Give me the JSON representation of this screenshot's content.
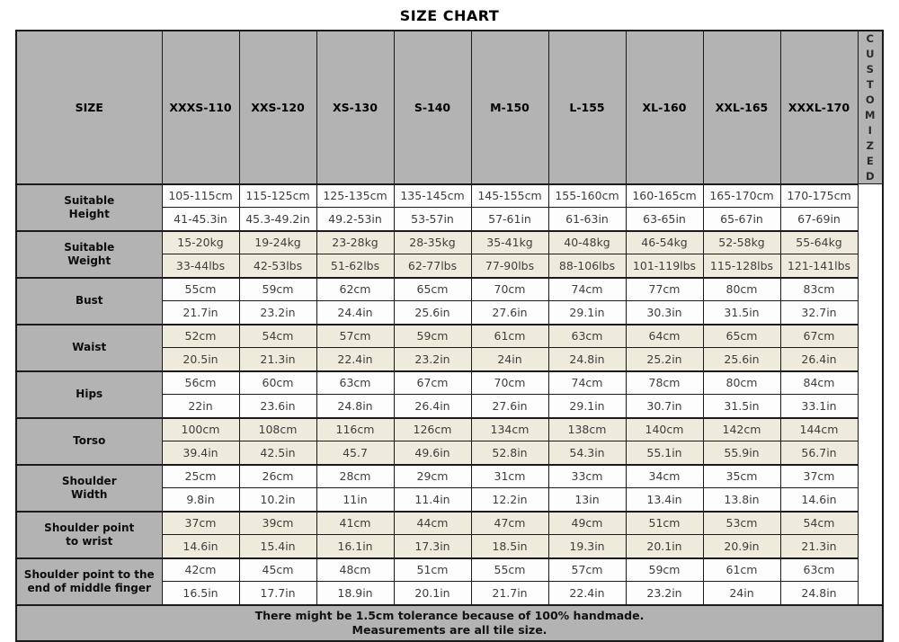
{
  "title": "SIZE CHART",
  "side_label": "CUSTOMIZED",
  "columns": [
    "SIZE",
    "XXXS-110",
    "XXS-120",
    "XS-130",
    "S-140",
    "M-150",
    "L-155",
    "XL-160",
    "XXL-165",
    "XXXL-170"
  ],
  "rows": [
    {
      "label_lines": [
        "Suitable",
        "Height"
      ],
      "shade": "white",
      "line1": [
        "105-115cm",
        "115-125cm",
        "125-135cm",
        "135-145cm",
        "145-155cm",
        "155-160cm",
        "160-165cm",
        "165-170cm",
        "170-175cm"
      ],
      "line2": [
        "41-45.3in",
        "45.3-49.2in",
        "49.2-53in",
        "53-57in",
        "57-61in",
        "61-63in",
        "63-65in",
        "65-67in",
        "67-69in"
      ]
    },
    {
      "label_lines": [
        "Suitable",
        "Weight"
      ],
      "shade": "cream",
      "line1": [
        "15-20kg",
        "19-24kg",
        "23-28kg",
        "28-35kg",
        "35-41kg",
        "40-48kg",
        "46-54kg",
        "52-58kg",
        "55-64kg"
      ],
      "line2": [
        "33-44lbs",
        "42-53lbs",
        "51-62lbs",
        "62-77lbs",
        "77-90lbs",
        "88-106lbs",
        "101-119lbs",
        "115-128lbs",
        "121-141lbs"
      ]
    },
    {
      "label_lines": [
        "Bust"
      ],
      "shade": "white",
      "line1": [
        "55cm",
        "59cm",
        "62cm",
        "65cm",
        "70cm",
        "74cm",
        "77cm",
        "80cm",
        "83cm"
      ],
      "line2": [
        "21.7in",
        "23.2in",
        "24.4in",
        "25.6in",
        "27.6in",
        "29.1in",
        "30.3in",
        "31.5in",
        "32.7in"
      ]
    },
    {
      "label_lines": [
        "Waist"
      ],
      "shade": "cream",
      "line1": [
        "52cm",
        "54cm",
        "57cm",
        "59cm",
        "61cm",
        "63cm",
        "64cm",
        "65cm",
        "67cm"
      ],
      "line2": [
        "20.5in",
        "21.3in",
        "22.4in",
        "23.2in",
        "24in",
        "24.8in",
        "25.2in",
        "25.6in",
        "26.4in"
      ]
    },
    {
      "label_lines": [
        "Hips"
      ],
      "shade": "white",
      "line1": [
        "56cm",
        "60cm",
        "63cm",
        "67cm",
        "70cm",
        "74cm",
        "78cm",
        "80cm",
        "84cm"
      ],
      "line2": [
        "22in",
        "23.6in",
        "24.8in",
        "26.4in",
        "27.6in",
        "29.1in",
        "30.7in",
        "31.5in",
        "33.1in"
      ]
    },
    {
      "label_lines": [
        "Torso"
      ],
      "shade": "cream",
      "line1": [
        "100cm",
        "108cm",
        "116cm",
        "126cm",
        "134cm",
        "138cm",
        "140cm",
        "142cm",
        "144cm"
      ],
      "line2": [
        "39.4in",
        "42.5in",
        "45.7",
        "49.6in",
        "52.8in",
        "54.3in",
        "55.1in",
        "55.9in",
        "56.7in"
      ]
    },
    {
      "label_lines": [
        "Shoulder",
        "Width"
      ],
      "shade": "white",
      "line1": [
        "25cm",
        "26cm",
        "28cm",
        "29cm",
        "31cm",
        "33cm",
        "34cm",
        "35cm",
        "37cm"
      ],
      "line2": [
        "9.8in",
        "10.2in",
        "11in",
        "11.4in",
        "12.2in",
        "13in",
        "13.4in",
        "13.8in",
        "14.6in"
      ]
    },
    {
      "label_lines": [
        "Shoulder point",
        "to wrist"
      ],
      "shade": "cream",
      "line1": [
        "37cm",
        "39cm",
        "41cm",
        "44cm",
        "47cm",
        "49cm",
        "51cm",
        "53cm",
        "54cm"
      ],
      "line2": [
        "14.6in",
        "15.4in",
        "16.1in",
        "17.3in",
        "18.5in",
        "19.3in",
        "20.1in",
        "20.9in",
        "21.3in"
      ]
    },
    {
      "label_lines": [
        "Shoulder point to the",
        "end of middle finger"
      ],
      "shade": "white",
      "line1": [
        "42cm",
        "45cm",
        "48cm",
        "51cm",
        "55cm",
        "57cm",
        "59cm",
        "61cm",
        "63cm"
      ],
      "line2": [
        "16.5in",
        "17.7in",
        "18.9in",
        "20.1in",
        "21.7in",
        "22.4in",
        "23.2in",
        "24in",
        "24.8in"
      ]
    }
  ],
  "footer": {
    "line1": "There might be 1.5cm tolerance because of 100% handmade.",
    "line2": "Measurements are all tile size."
  },
  "colors": {
    "header_bg": "#b3b3b3",
    "label_bg": "#b3b3b3",
    "row_cream": "#efebdc",
    "row_white": "#fdfdfd",
    "border": "#1a1a1a",
    "value_text": "#3d3d3d",
    "page_bg": "#ffffff"
  }
}
